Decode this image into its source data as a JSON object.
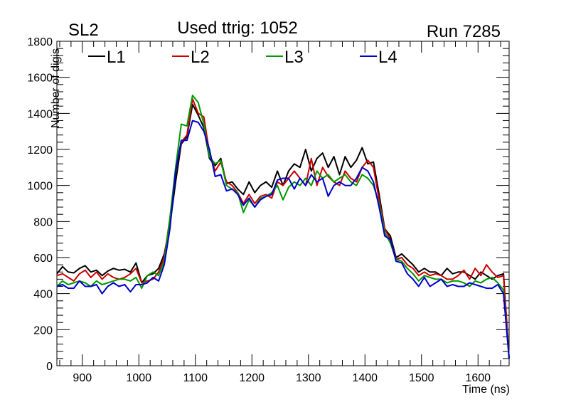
{
  "header": {
    "left": "SL2",
    "center": "Used ttrig: 1052",
    "right": "Run 7285"
  },
  "chart_data": {
    "type": "line",
    "title": "Used ttrig: 1052",
    "xlabel": "Time (ns)",
    "ylabel": "Number of digis",
    "xlim": [
      855,
      1655
    ],
    "ylim": [
      0,
      1800
    ],
    "x_ticks": [
      900,
      1000,
      1100,
      1200,
      1300,
      1400,
      1500,
      1600
    ],
    "y_ticks": [
      0,
      200,
      400,
      600,
      800,
      1000,
      1200,
      1400,
      1600,
      1800
    ],
    "grid": false,
    "legend_position": "top-left",
    "x": [
      855,
      865,
      875,
      885,
      895,
      905,
      915,
      925,
      935,
      945,
      955,
      965,
      975,
      985,
      995,
      1005,
      1015,
      1025,
      1035,
      1045,
      1055,
      1065,
      1075,
      1085,
      1095,
      1105,
      1115,
      1125,
      1135,
      1145,
      1155,
      1165,
      1175,
      1185,
      1195,
      1205,
      1215,
      1225,
      1235,
      1245,
      1255,
      1265,
      1275,
      1285,
      1295,
      1305,
      1315,
      1325,
      1335,
      1345,
      1355,
      1365,
      1375,
      1385,
      1395,
      1405,
      1415,
      1425,
      1435,
      1445,
      1455,
      1465,
      1475,
      1485,
      1495,
      1505,
      1515,
      1525,
      1535,
      1545,
      1555,
      1565,
      1575,
      1585,
      1595,
      1605,
      1615,
      1625,
      1635,
      1645,
      1655
    ],
    "series": [
      {
        "name": "L1",
        "color": "#000000",
        "values": [
          510,
          550,
          520,
          515,
          540,
          555,
          520,
          530,
          500,
          525,
          540,
          530,
          535,
          520,
          570,
          460,
          500,
          510,
          540,
          620,
          780,
          1020,
          1230,
          1270,
          1450,
          1390,
          1320,
          1150,
          1110,
          1150,
          1010,
          1020,
          980,
          950,
          1020,
          960,
          1000,
          1020,
          990,
          1080,
          1000,
          1080,
          1120,
          1100,
          1200,
          1080,
          1150,
          1180,
          1100,
          1160,
          1060,
          1160,
          1100,
          1140,
          1210,
          1120,
          1130,
          950,
          760,
          720,
          600,
          620,
          590,
          560,
          520,
          540,
          520,
          520,
          500,
          540,
          510,
          520,
          520,
          500,
          480,
          520,
          500,
          480,
          500,
          510,
          40
        ]
      },
      {
        "name": "L2",
        "color": "#cc0000",
        "values": [
          500,
          510,
          490,
          470,
          510,
          530,
          490,
          520,
          480,
          510,
          490,
          480,
          490,
          510,
          540,
          460,
          470,
          480,
          520,
          600,
          820,
          1080,
          1240,
          1280,
          1480,
          1400,
          1380,
          1180,
          1080,
          1130,
          1020,
          1000,
          960,
          900,
          950,
          900,
          940,
          950,
          930,
          1020,
          1000,
          1040,
          1080,
          1040,
          1000,
          1150,
          1000,
          1100,
          1050,
          1020,
          1000,
          1080,
          1040,
          1020,
          1100,
          1140,
          1100,
          920,
          760,
          700,
          590,
          600,
          560,
          540,
          500,
          520,
          500,
          510,
          500,
          480,
          480,
          500,
          530,
          480,
          540,
          500,
          560,
          520,
          490,
          500,
          40
        ]
      },
      {
        "name": "L3",
        "color": "#009900",
        "values": [
          440,
          470,
          450,
          460,
          470,
          460,
          440,
          470,
          450,
          460,
          470,
          480,
          480,
          470,
          490,
          430,
          500,
          520,
          500,
          580,
          820,
          1100,
          1340,
          1330,
          1500,
          1460,
          1340,
          1160,
          1120,
          1140,
          1000,
          980,
          960,
          850,
          920,
          880,
          930,
          940,
          960,
          1000,
          920,
          990,
          1020,
          1000,
          1040,
          1000,
          1080,
          1040,
          1060,
          1020,
          1040,
          1060,
          1020,
          1000,
          1060,
          1040,
          1000,
          900,
          740,
          680,
          590,
          580,
          540,
          510,
          470,
          500,
          490,
          480,
          480,
          460,
          470,
          470,
          460,
          440,
          470,
          460,
          480,
          490,
          460,
          420,
          40
        ]
      },
      {
        "name": "L4",
        "color": "#0000cc",
        "values": [
          440,
          450,
          430,
          430,
          470,
          440,
          440,
          450,
          400,
          440,
          460,
          440,
          450,
          410,
          450,
          450,
          460,
          490,
          470,
          560,
          760,
          1080,
          1250,
          1250,
          1360,
          1350,
          1300,
          1200,
          1050,
          1060,
          970,
          980,
          950,
          890,
          930,
          880,
          920,
          940,
          950,
          1030,
          1040,
          1040,
          980,
          1040,
          1000,
          1060,
          1020,
          1040,
          940,
          1000,
          1020,
          1000,
          1000,
          1040,
          1100,
          1080,
          1020,
          880,
          720,
          700,
          580,
          570,
          510,
          480,
          440,
          490,
          440,
          460,
          480,
          440,
          450,
          440,
          440,
          460,
          450,
          440,
          430,
          430,
          450,
          400,
          40
        ]
      }
    ]
  }
}
